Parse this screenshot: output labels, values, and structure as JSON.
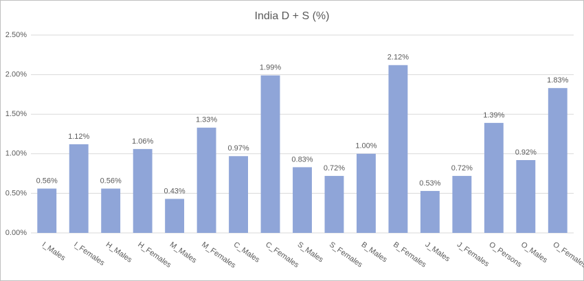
{
  "chart_data": {
    "type": "bar",
    "title": "India D + S (%)",
    "categories": [
      "I_Males",
      "I_Females",
      "H_Males",
      "H_Females",
      "M_Males",
      "M_Females",
      "C_Males",
      "C_Females",
      "S_Males",
      "S_Females",
      "B_Males",
      "B_Females",
      "J_Males",
      "J_Females",
      "O_Persons",
      "O_Males",
      "O_Females"
    ],
    "values": [
      0.56,
      1.12,
      0.56,
      1.06,
      0.43,
      1.33,
      0.97,
      1.99,
      0.83,
      0.72,
      1.0,
      2.12,
      0.53,
      0.72,
      1.39,
      0.92,
      1.83
    ],
    "value_labels": [
      "0.56%",
      "1.12%",
      "0.56%",
      "1.06%",
      "0.43%",
      "1.33%",
      "0.97%",
      "1.99%",
      "0.83%",
      "0.72%",
      "1.00%",
      "2.12%",
      "0.53%",
      "0.72%",
      "1.39%",
      "0.92%",
      "1.83%"
    ],
    "color": "#8fa5d8",
    "ylim": [
      0,
      2.5
    ],
    "yticks": [
      {
        "value": 0,
        "label": "0.00%"
      },
      {
        "value": 0.5,
        "label": "0.50%"
      },
      {
        "value": 1,
        "label": "1.00%"
      },
      {
        "value": 1.5,
        "label": "1.50%"
      },
      {
        "value": 2,
        "label": "2.00%"
      },
      {
        "value": 2.5,
        "label": "2.50%"
      }
    ],
    "grid": true
  }
}
